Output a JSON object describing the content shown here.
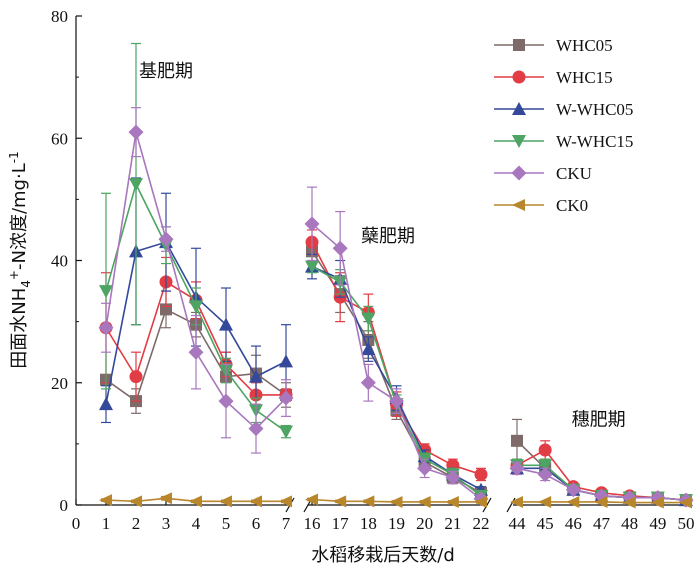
{
  "chart_data": {
    "type": "line",
    "ylabel_parts": [
      "田面水NH",
      "4",
      "+",
      "-N浓度/mg·L",
      "-1"
    ],
    "xlabel": "水稻移栽后天数/d",
    "ylim": [
      0,
      80
    ],
    "yticks": [
      0,
      20,
      40,
      60,
      80
    ],
    "x_segments": [
      {
        "from": 0,
        "to": 7,
        "ticks": [
          0,
          1,
          2,
          3,
          4,
          5,
          6,
          7
        ]
      },
      {
        "from": 16,
        "to": 22,
        "ticks": [
          16,
          17,
          18,
          19,
          20,
          21,
          22
        ]
      },
      {
        "from": 44,
        "to": 50,
        "ticks": [
          44,
          45,
          46,
          47,
          48,
          49,
          50
        ]
      }
    ],
    "annotations": [
      {
        "text": "基肥期",
        "x": 3,
        "y": 70
      },
      {
        "text": "蘖肥期",
        "x": 18.7,
        "y": 43
      },
      {
        "text": "穗肥期",
        "x": 46.9,
        "y": 13
      }
    ],
    "legend_position": "top-right",
    "series": [
      {
        "name": "WHC05",
        "color": "#7f6a6a",
        "marker": "square",
        "segments": [
          {
            "x": [
              1,
              2,
              3,
              4,
              5,
              6,
              7
            ],
            "y": [
              20.5,
              17,
              32,
              29.5,
              21,
              21.5,
              18
            ],
            "err": [
              0,
              2,
              3,
              2,
              4,
              3,
              2
            ]
          },
          {
            "x": [
              16,
              17,
              18,
              19,
              20,
              21,
              22
            ],
            "y": [
              41.5,
              34.5,
              27,
              15.5,
              7,
              4.5,
              2
            ],
            "err": [
              2,
              3,
              3,
              1.5,
              1,
              1,
              0.5
            ]
          },
          {
            "x": [
              44,
              45,
              46,
              47,
              48,
              49,
              50
            ],
            "y": [
              10.5,
              6,
              2.5,
              1.5,
              1.2,
              1.2,
              0.8
            ],
            "err": [
              3.5,
              1,
              0.5,
              0.3,
              0.2,
              0.2,
              0.2
            ]
          }
        ]
      },
      {
        "name": "WHC15",
        "color": "#e23c44",
        "marker": "circle",
        "segments": [
          {
            "x": [
              1,
              2,
              3,
              4,
              5,
              6,
              7
            ],
            "y": [
              29,
              21,
              36.5,
              33.5,
              23,
              18,
              18
            ],
            "err": [
              9,
              4,
              4,
              3,
              2,
              2,
              1
            ]
          },
          {
            "x": [
              16,
              17,
              18,
              19,
              20,
              21,
              22
            ],
            "y": [
              43,
              34,
              31.5,
              16.5,
              9,
              6.5,
              5
            ],
            "err": [
              2,
              4,
              3,
              2,
              1,
              1,
              1
            ]
          },
          {
            "x": [
              44,
              45,
              46,
              47,
              48,
              49,
              50
            ],
            "y": [
              6.5,
              9,
              3,
              2,
              1.5,
              1.2,
              0.8
            ],
            "err": [
              1,
              1.5,
              0.5,
              0.3,
              0.2,
              0.2,
              0.2
            ]
          }
        ]
      },
      {
        "name": "W-WHC05",
        "color": "#34499a",
        "marker": "triangle-up",
        "segments": [
          {
            "x": [
              1,
              2,
              3,
              4,
              5,
              6,
              7
            ],
            "y": [
              16.5,
              41.5,
              43,
              34,
              29.5,
              21,
              23.5
            ],
            "err": [
              3,
              12,
              8,
              8,
              6,
              5,
              6
            ]
          },
          {
            "x": [
              16,
              17,
              18,
              19,
              20,
              21,
              22
            ],
            "y": [
              39,
              37,
              25.5,
              17.5,
              8,
              5,
              2.5
            ],
            "err": [
              2,
              3,
              2,
              2,
              1,
              1,
              0.5
            ]
          },
          {
            "x": [
              44,
              45,
              46,
              47,
              48,
              49,
              50
            ],
            "y": [
              6,
              6,
              2.5,
              1.5,
              1.2,
              1.2,
              0.8
            ],
            "err": [
              1,
              1,
              0.5,
              0.3,
              0.2,
              0.2,
              0.2
            ]
          }
        ]
      },
      {
        "name": "W-WHC15",
        "color": "#4da463",
        "marker": "triangle-down",
        "segments": [
          {
            "x": [
              1,
              2,
              3,
              4,
              5,
              6,
              7
            ],
            "y": [
              35,
              52.5,
              42.5,
              32.5,
              22,
              15.5,
              12
            ],
            "err": [
              16,
              23,
              3,
              3,
              2,
              2,
              1
            ]
          },
          {
            "x": [
              16,
              17,
              18,
              19,
              20,
              21,
              22
            ],
            "y": [
              39,
              36.5,
              30.5,
              16.5,
              7.5,
              5,
              1.5
            ],
            "err": [
              1,
              2,
              2,
              1.5,
              1,
              1,
              0.5
            ]
          },
          {
            "x": [
              44,
              45,
              46,
              47,
              48,
              49,
              50
            ],
            "y": [
              6.5,
              6.5,
              2.5,
              1.5,
              1.2,
              1.2,
              0.8
            ],
            "err": [
              1,
              1,
              0.5,
              0.3,
              0.2,
              0.2,
              0.2
            ]
          }
        ]
      },
      {
        "name": "CKU",
        "color": "#a877bd",
        "marker": "diamond",
        "segments": [
          {
            "x": [
              1,
              2,
              3,
              4,
              5,
              6,
              7
            ],
            "y": [
              29,
              61,
              43.5,
              25,
              17,
              12.5,
              17.5
            ],
            "err": [
              4,
              4,
              2,
              6,
              6,
              4,
              3
            ]
          },
          {
            "x": [
              16,
              17,
              18,
              19,
              20,
              21,
              22
            ],
            "y": [
              46,
              42,
              20,
              17,
              6,
              4.5,
              1
            ],
            "err": [
              6,
              6,
              3,
              2,
              1.5,
              1,
              0.5
            ]
          },
          {
            "x": [
              44,
              45,
              46,
              47,
              48,
              49,
              50
            ],
            "y": [
              6,
              5,
              2.5,
              1.5,
              1.2,
              1.2,
              0.8
            ],
            "err": [
              1,
              1,
              0.5,
              0.3,
              0.2,
              0.2,
              0.2
            ]
          }
        ]
      },
      {
        "name": "CK0",
        "color": "#b8862b",
        "marker": "triangle-left",
        "segments": [
          {
            "x": [
              1,
              2,
              3,
              4,
              5,
              6,
              7
            ],
            "y": [
              0.8,
              0.6,
              1.1,
              0.6,
              0.6,
              0.6,
              0.6
            ],
            "err": [
              0.2,
              0.2,
              0.3,
              0.2,
              0.2,
              0.2,
              0.2
            ]
          },
          {
            "x": [
              16,
              17,
              18,
              19,
              20,
              21,
              22
            ],
            "y": [
              0.9,
              0.6,
              0.6,
              0.5,
              0.5,
              0.5,
              0.5
            ],
            "err": [
              0.2,
              0.2,
              0.2,
              0.2,
              0.2,
              0.2,
              0.2
            ]
          },
          {
            "x": [
              44,
              45,
              46,
              47,
              48,
              49,
              50
            ],
            "y": [
              0.5,
              0.5,
              0.5,
              0.5,
              0.4,
              0.4,
              0.4
            ],
            "err": [
              0.1,
              0.1,
              0.1,
              0.1,
              0.1,
              0.1,
              0.1
            ]
          }
        ]
      }
    ]
  }
}
